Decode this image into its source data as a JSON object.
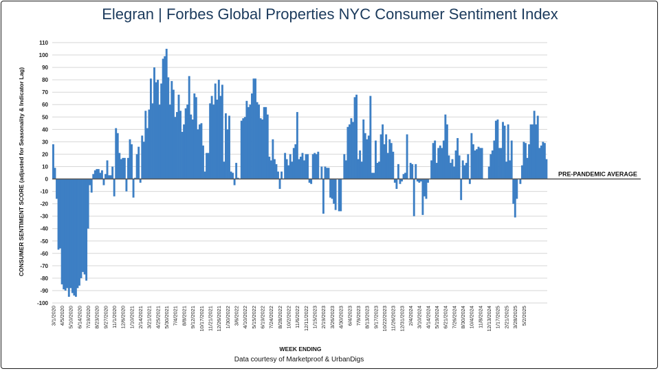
{
  "title": {
    "part1": "Elegran | Forbes Global Properties",
    "part2": " NYC Consumer Sentiment Index"
  },
  "chart_data": {
    "type": "bar",
    "ylabel": "CONSUMER SENTIMENT SCORE (adjusted for Seasonality & Indicator Lag)",
    "xlabel": "WEEK ENDING",
    "source_note": "Data courtesy of Marketproof & UrbanDigs",
    "reference_line": {
      "label": "PRE-PANDEMIC AVERAGE",
      "value": 0
    },
    "ylim": [
      -100,
      110
    ],
    "yticks": [
      110,
      100,
      90,
      80,
      70,
      60,
      50,
      40,
      30,
      20,
      10,
      0,
      -10,
      -20,
      -30,
      -40,
      -50,
      -60,
      -70,
      -80,
      -90,
      -100
    ],
    "grid": true,
    "bar_color": "#3d7fc4",
    "start_week": "3/1/2020",
    "xtick_labels": [
      "3/1/2020",
      "4/5/2020",
      "5/10/2020",
      "6/14/2020",
      "7/19/2020",
      "8/23/2020",
      "9/27/2020",
      "11/1/2020",
      "12/6/2020",
      "1/10/2021",
      "2/14/2021",
      "3/21/2021",
      "4/25/2021",
      "5/30/2021",
      "7/4/2021",
      "8/8/2021",
      "9/12/2021",
      "10/17/2021",
      "11/21/2021",
      "12/26/2021",
      "1/30/2022",
      "3/6/2022",
      "4/10/2022",
      "5/15/2022",
      "6/19/2022",
      "7/24/2022",
      "8/28/2022",
      "10/2/2022",
      "11/6/2022",
      "12/11/2022",
      "1/15/2023",
      "2/19/2023",
      "3/26/2023",
      "4/30/2023",
      "6/4/2023",
      "7/9/2023",
      "8/13/2023",
      "9/17/2023",
      "10/22/2023",
      "11/26/2023",
      "12/31/2023",
      "2/4/2024",
      "3/10/2024",
      "4/14/2024",
      "5/19/2024",
      "6/21/2024",
      "7/26/2024",
      "8/30/2024",
      "10/4/2024",
      "11/8/2024",
      "12/13/2024",
      "1/17/2025",
      "2/21/2025",
      "3/28/2025",
      "5/2/2025"
    ],
    "values": [
      28,
      9,
      -16,
      -57,
      -56,
      -85,
      -89,
      -90,
      -88,
      -95,
      -88,
      -92,
      -94,
      -95,
      -88,
      -86,
      -80,
      -75,
      -77,
      -82,
      -40,
      -5,
      -11,
      4,
      7,
      8,
      8,
      5,
      7,
      -5,
      4,
      15,
      3,
      3,
      10,
      -14,
      41,
      37,
      21,
      16,
      17,
      17,
      -10,
      17,
      32,
      28,
      -15,
      1,
      20,
      26,
      -3,
      35,
      30,
      55,
      41,
      56,
      81,
      61,
      90,
      78,
      80,
      60,
      77,
      97,
      99,
      105,
      82,
      60,
      79,
      72,
      50,
      54,
      68,
      55,
      38,
      44,
      57,
      60,
      83,
      52,
      48,
      69,
      66,
      40,
      44,
      45,
      27,
      6,
      21,
      21,
      61,
      67,
      60,
      77,
      64,
      80,
      67,
      76,
      14,
      53,
      40,
      51,
      6,
      5,
      -5,
      13,
      1,
      0,
      47,
      49,
      50,
      63,
      58,
      60,
      69,
      81,
      81,
      62,
      60,
      49,
      48,
      58,
      58,
      52,
      18,
      15,
      32,
      16,
      12,
      6,
      -8,
      6,
      0,
      21,
      16,
      11,
      20,
      14,
      25,
      28,
      54,
      16,
      18,
      21,
      15,
      20,
      20,
      -3,
      -4,
      20,
      21,
      20,
      22,
      0,
      10,
      -28,
      10,
      9,
      9,
      -15,
      -16,
      -20,
      -25,
      0,
      -26,
      -26,
      0,
      20,
      15,
      42,
      44,
      49,
      46,
      66,
      68,
      16,
      23,
      14,
      48,
      37,
      32,
      35,
      67,
      5,
      5,
      31,
      13,
      14,
      36,
      44,
      28,
      36,
      21,
      32,
      29,
      22,
      -3,
      -8,
      12,
      -4,
      -2,
      4,
      5,
      36,
      0,
      13,
      12,
      -30,
      12,
      -2,
      -3,
      -2,
      -29,
      -14,
      -16,
      -3,
      0,
      15,
      29,
      31,
      13,
      25,
      27,
      25,
      31,
      52,
      44,
      19,
      13,
      16,
      10,
      23,
      33,
      19,
      -17,
      15,
      11,
      13,
      20,
      -4,
      37,
      28,
      23,
      24,
      26,
      25,
      25,
      0,
      0,
      0,
      10,
      20,
      23,
      31,
      47,
      48,
      25,
      25,
      46,
      43,
      14,
      44,
      15,
      31,
      -20,
      -31,
      -16,
      0,
      -4,
      11,
      30,
      29,
      17,
      28,
      44,
      44,
      55,
      44,
      51,
      25,
      27,
      30,
      29,
      16
    ]
  }
}
